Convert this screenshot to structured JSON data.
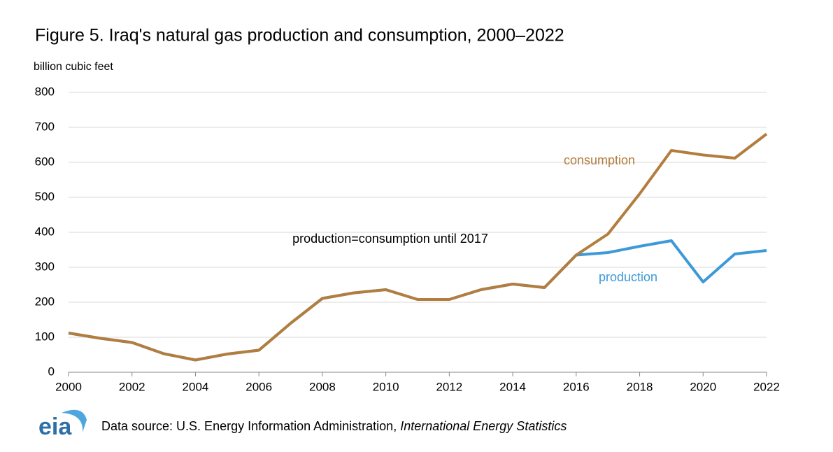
{
  "chart_data": {
    "type": "line",
    "title": "Figure 5. Iraq's natural gas production and consumption, 2000–2022",
    "y_axis_label": "billion cubic feet",
    "x": [
      2000,
      2001,
      2002,
      2003,
      2004,
      2005,
      2006,
      2007,
      2008,
      2009,
      2010,
      2011,
      2012,
      2013,
      2014,
      2015,
      2016,
      2017,
      2018,
      2019,
      2020,
      2021,
      2022
    ],
    "series": [
      {
        "name": "production",
        "color": "#3e99d8",
        "values": [
          112,
          97,
          85,
          53,
          35,
          52,
          63,
          140,
          211,
          227,
          236,
          208,
          208,
          236,
          252,
          242,
          335,
          342,
          360,
          376,
          258,
          338,
          348
        ]
      },
      {
        "name": "consumption",
        "color": "#b37d3e",
        "values": [
          112,
          97,
          85,
          53,
          35,
          52,
          63,
          140,
          211,
          227,
          236,
          208,
          208,
          236,
          252,
          242,
          335,
          395,
          510,
          634,
          621,
          612,
          681
        ]
      }
    ],
    "annotations": [
      "production=consumption  until 2017"
    ],
    "xlim": [
      2000,
      2022
    ],
    "xticks": [
      2000,
      2002,
      2004,
      2006,
      2008,
      2010,
      2012,
      2014,
      2016,
      2018,
      2020,
      2022
    ],
    "ylim": [
      0,
      800
    ],
    "yticks": [
      0,
      100,
      200,
      300,
      400,
      500,
      600,
      700,
      800
    ],
    "grid": true,
    "source": {
      "prefix": "Data source: U.S. Energy Information Administration, ",
      "title": "International Energy Statistics"
    },
    "logo": "eia"
  }
}
